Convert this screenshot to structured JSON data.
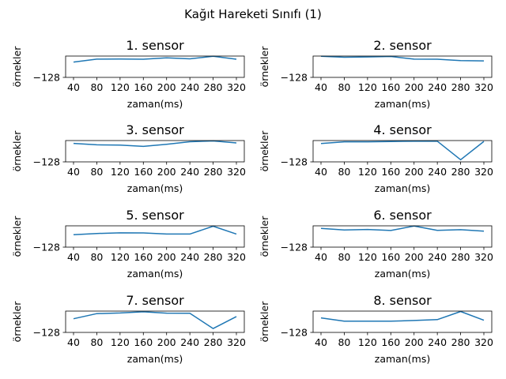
{
  "figure": {
    "suptitle": "Kağıt Hareketi Sınıfı (1)"
  },
  "chart_data": [
    {
      "type": "line",
      "title": "1. sensor",
      "xlabel": "zaman(ms)",
      "ylabel": "örnekler",
      "x": [
        40,
        80,
        120,
        160,
        200,
        240,
        280,
        320
      ],
      "x_ticks": [
        "40",
        "80",
        "120",
        "160",
        "200",
        "240",
        "280",
        "320"
      ],
      "y_ticks": [
        "−128"
      ],
      "ylim": [
        -128,
        72
      ],
      "color": "#1f77b4",
      "series": [
        {
          "values": [
            16,
            43,
            44,
            42,
            56,
            46,
            70,
            42
          ]
        }
      ]
    },
    {
      "type": "line",
      "title": "2. sensor",
      "xlabel": "zaman(ms)",
      "ylabel": "örnekler",
      "x": [
        40,
        80,
        120,
        160,
        200,
        240,
        280,
        320
      ],
      "x_ticks": [
        "40",
        "80",
        "120",
        "160",
        "200",
        "240",
        "280",
        "320"
      ],
      "y_ticks": [
        "−128"
      ],
      "ylim": [
        -128,
        72
      ],
      "color": "#1f77b4",
      "series": [
        {
          "values": [
            70,
            61,
            64,
            68,
            43,
            42,
            30,
            27
          ]
        }
      ]
    },
    {
      "type": "line",
      "title": "3. sensor",
      "xlabel": "zaman(ms)",
      "ylabel": "örnekler",
      "x": [
        40,
        80,
        120,
        160,
        200,
        240,
        280,
        320
      ],
      "x_ticks": [
        "40",
        "80",
        "120",
        "160",
        "200",
        "240",
        "280",
        "320"
      ],
      "y_ticks": [
        "−128"
      ],
      "ylim": [
        -128,
        72
      ],
      "color": "#1f77b4",
      "series": [
        {
          "values": [
            45,
            32,
            29,
            17,
            37,
            61,
            68,
            50
          ]
        }
      ]
    },
    {
      "type": "line",
      "title": "4. sensor",
      "xlabel": "zaman(ms)",
      "ylabel": "örnekler",
      "x": [
        40,
        80,
        120,
        160,
        200,
        240,
        280,
        320
      ],
      "x_ticks": [
        "40",
        "80",
        "120",
        "160",
        "200",
        "240",
        "280",
        "320"
      ],
      "y_ticks": [
        "−128"
      ],
      "ylim": [
        -128,
        72
      ],
      "color": "#1f77b4",
      "series": [
        {
          "values": [
            44,
            60,
            60,
            63,
            65,
            66,
            -108,
            64
          ]
        }
      ]
    },
    {
      "type": "line",
      "title": "5. sensor",
      "xlabel": "zaman(ms)",
      "ylabel": "örnekler",
      "x": [
        40,
        80,
        120,
        160,
        200,
        240,
        280,
        320
      ],
      "x_ticks": [
        "40",
        "80",
        "120",
        "160",
        "200",
        "240",
        "280",
        "320"
      ],
      "y_ticks": [
        "−128"
      ],
      "ylim": [
        -128,
        72
      ],
      "color": "#1f77b4",
      "series": [
        {
          "values": [
            -12,
            0,
            6,
            5,
            -5,
            -5,
            68,
            -5
          ]
        }
      ]
    },
    {
      "type": "line",
      "title": "6. sensor",
      "xlabel": "zaman(ms)",
      "ylabel": "örnekler",
      "x": [
        40,
        80,
        120,
        160,
        200,
        240,
        280,
        320
      ],
      "x_ticks": [
        "40",
        "80",
        "120",
        "160",
        "200",
        "240",
        "280",
        "320"
      ],
      "y_ticks": [
        "−128"
      ],
      "ylim": [
        -128,
        72
      ],
      "color": "#1f77b4",
      "series": [
        {
          "values": [
            48,
            33,
            38,
            28,
            70,
            30,
            36,
            22
          ]
        }
      ]
    },
    {
      "type": "line",
      "title": "7. sensor",
      "xlabel": "zaman(ms)",
      "ylabel": "örnekler",
      "x": [
        40,
        80,
        120,
        160,
        200,
        240,
        280,
        320
      ],
      "x_ticks": [
        "40",
        "80",
        "120",
        "160",
        "200",
        "240",
        "280",
        "320"
      ],
      "y_ticks": [
        "−128"
      ],
      "ylim": [
        -128,
        72
      ],
      "color": "#1f77b4",
      "series": [
        {
          "values": [
            0,
            48,
            54,
            65,
            53,
            52,
            -92,
            21
          ]
        }
      ]
    },
    {
      "type": "line",
      "title": "8. sensor",
      "xlabel": "zaman(ms)",
      "ylabel": "örnekler",
      "x": [
        40,
        80,
        120,
        160,
        200,
        240,
        280,
        320
      ],
      "x_ticks": [
        "40",
        "80",
        "120",
        "160",
        "200",
        "240",
        "280",
        "320"
      ],
      "y_ticks": [
        "−128"
      ],
      "ylim": [
        -128,
        72
      ],
      "color": "#1f77b4",
      "series": [
        {
          "values": [
            8,
            -22,
            -22,
            -23,
            -16,
            -8,
            68,
            -14
          ]
        }
      ]
    }
  ]
}
